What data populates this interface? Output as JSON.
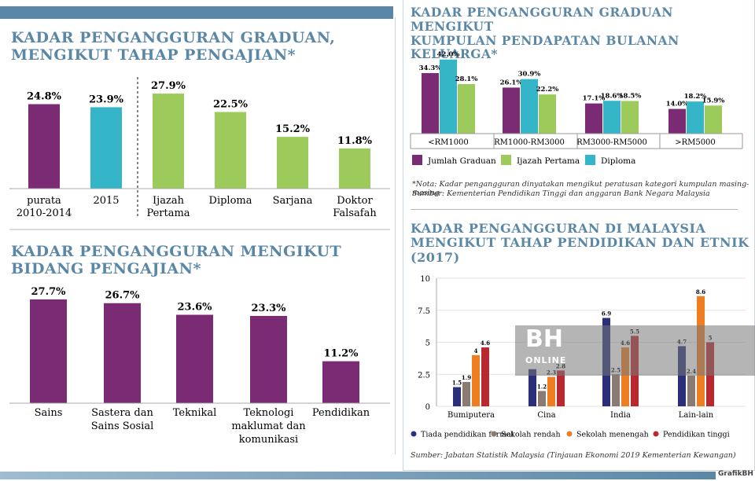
{
  "credit": "GrafikBH",
  "watermark": {
    "logo": "BH",
    "sub": "ONLINE"
  },
  "chart_data": [
    {
      "id": "tahap",
      "type": "bar",
      "title_line1": "KADAR PENGANGGURAN GRADUAN,",
      "title_line2": "MENGIKUT TAHAP PENGAJIAN*",
      "categories": [
        [
          "purata",
          "2010-2014"
        ],
        [
          "2015"
        ],
        [
          "Ijazah",
          "Pertama"
        ],
        [
          "Diploma"
        ],
        [
          "Sarjana"
        ],
        [
          "Doktor",
          "Falsafah"
        ]
      ],
      "values": [
        24.8,
        23.9,
        27.9,
        22.5,
        15.2,
        11.8
      ],
      "labels": [
        "24.8%",
        "23.9%",
        "27.9%",
        "22.5%",
        "15.2%",
        "11.8%"
      ],
      "colors": [
        "#7b2a74",
        "#35b6c8",
        "#9ccb5b",
        "#9ccb5b",
        "#9ccb5b",
        "#9ccb5b"
      ],
      "ylim": [
        0,
        30
      ]
    },
    {
      "id": "bidang",
      "type": "bar",
      "title_line1": "KADAR PENGANGGURAN MENGIKUT",
      "title_line2": "BIDANG PENGAJIAN*",
      "categories": [
        [
          "Sains"
        ],
        [
          "Sastera dan",
          "Sains Sosial"
        ],
        [
          "Teknikal"
        ],
        [
          "Teknologi",
          "maklumat dan",
          "komunikasi"
        ],
        [
          "Pendidikan"
        ]
      ],
      "values": [
        27.7,
        26.7,
        23.6,
        23.3,
        11.2
      ],
      "labels": [
        "27.7%",
        "26.7%",
        "23.6%",
        "23.3%",
        "11.2%"
      ],
      "color": "#7b2a74",
      "ylim": [
        0,
        30
      ]
    },
    {
      "id": "pendapatan",
      "type": "bar",
      "title_line1": "KADAR PENGANGGURAN GRADUAN MENGIKUT",
      "title_line2": "KUMPULAN PENDAPATAN BULANAN KELUARGA*",
      "categories": [
        "<RM1000",
        "RM1000-RM3000",
        "RM3000-RM5000",
        ">RM5000"
      ],
      "series": [
        {
          "name": "Jumlah Graduan",
          "color": "#7b2a74",
          "values": [
            34.3,
            26.1,
            17.1,
            14.0
          ],
          "labels": [
            "34.3%",
            "26.1%",
            "17.1%",
            "14.0%"
          ]
        },
        {
          "name": "Diploma",
          "color": "#35b6c8",
          "values": [
            42.0,
            30.9,
            18.6,
            18.2
          ],
          "labels": [
            "42.0%",
            "30.9%",
            "18.6%",
            "18.2%"
          ]
        },
        {
          "name": "Ijazah Pertama",
          "color": "#9ccb5b",
          "values": [
            28.1,
            22.2,
            18.5,
            15.9
          ],
          "labels": [
            "28.1%",
            "22.2%",
            "18.5%",
            "15.9%"
          ]
        }
      ],
      "legend_order": [
        "Jumlah Graduan",
        "Ijazah Pertama",
        "Diploma"
      ],
      "ylim": [
        0,
        45
      ],
      "note1": "*Nota: Kadar pengangguran dinyatakan mengikut peratusan kategori kumpulan masing-masing",
      "note2": "Sumber: Kementerian Pendidikan Tinggi dan anggaran Bank Negara Malaysia"
    },
    {
      "id": "etnik",
      "type": "bar",
      "title_line1": "KADAR PENGANGGURAN DI MALAYSIA",
      "title_line2": "MENGIKUT TAHAP PENDIDIKAN DAN ETNIK",
      "title_line3": "(2017)",
      "categories": [
        "Bumiputera",
        "Cina",
        "India",
        "Lain-lain"
      ],
      "series": [
        {
          "name": "Tiada pendidikan formal",
          "color": "#2b2f7a",
          "values": [
            1.5,
            2.9,
            6.9,
            4.7
          ],
          "labels": [
            "1.5",
            "",
            "6.9",
            "4.7"
          ]
        },
        {
          "name": "Sekolah rendah",
          "color": "#8a7a72",
          "values": [
            1.9,
            1.2,
            2.5,
            2.4
          ],
          "labels": [
            "1.9",
            "1.2",
            "2.5",
            "2.4"
          ]
        },
        {
          "name": "Sekolah menengah",
          "color": "#ef7d22",
          "values": [
            4.0,
            2.3,
            4.6,
            8.6
          ],
          "labels": [
            "4",
            "2.3",
            "4.6",
            "8.6"
          ]
        },
        {
          "name": "Pendidikan tinggi",
          "color": "#b8282e",
          "values": [
            4.6,
            2.8,
            5.5,
            5.0
          ],
          "labels": [
            "4.6",
            "2.8",
            "5.5",
            "5"
          ]
        }
      ],
      "yticks": [
        "0",
        "2.5",
        "5",
        "7.5",
        "10"
      ],
      "ylim": [
        0,
        10
      ],
      "source": "Sumber: Jabatan Statistik Malaysia (Tinjauan Ekonomi 2019 Kementerian Kewangan)"
    }
  ]
}
